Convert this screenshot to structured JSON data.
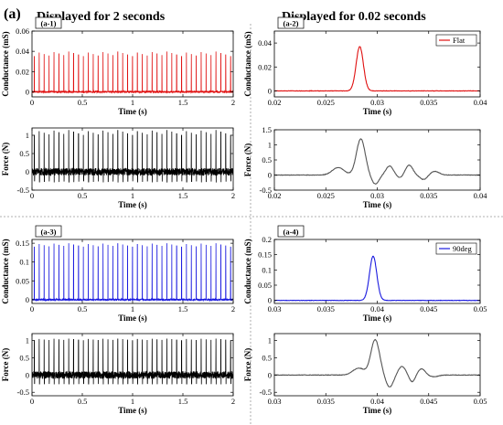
{
  "figure": {
    "label": "(a)",
    "left_heading": "Displayed for 2 seconds",
    "right_heading": "Displayed for 0.02 seconds"
  },
  "colors": {
    "red": "#e01010",
    "blue": "#1a1adf",
    "black": "#000000",
    "gray": "#555555"
  },
  "chart_data": [
    {
      "id": "a1",
      "panel_label": "(a-1)",
      "type": "line",
      "xlabel": "Time (s)",
      "ylabel": "Conductance (mS)",
      "xlim": [
        0,
        2
      ],
      "ylim": [
        -0.005,
        0.06
      ],
      "xticks": [
        0,
        0.5,
        1,
        1.5,
        2
      ],
      "xtick_labels": [
        "0",
        "0.5",
        "1",
        "1.5",
        "2"
      ],
      "yticks": [
        0,
        0.02,
        0.04,
        0.06
      ],
      "ytick_labels": [
        "0",
        "0.02",
        "0.04",
        "0.06"
      ],
      "color": "red",
      "spike_count": 41,
      "spike_heights_range": [
        0.035,
        0.04
      ],
      "baseline": 0,
      "legend": ""
    },
    {
      "id": "a1f",
      "panel_label": "",
      "type": "line",
      "xlabel": "Time (s)",
      "ylabel": "Force (N)",
      "xlim": [
        0,
        2
      ],
      "ylim": [
        -0.5,
        1.2
      ],
      "xticks": [
        0,
        0.5,
        1,
        1.5,
        2
      ],
      "xtick_labels": [
        "0",
        "0.5",
        "1",
        "1.5",
        "2"
      ],
      "yticks": [
        -0.5,
        0,
        0.5,
        1
      ],
      "ytick_labels": [
        "-0.5",
        "0",
        "0.5",
        "1"
      ],
      "color": "black",
      "spike_count": 41,
      "spike_heights_range": [
        1.0,
        1.15
      ],
      "baseline": 0,
      "legend": ""
    },
    {
      "id": "a2",
      "panel_label": "(a-2)",
      "type": "line",
      "xlabel": "Time (s)",
      "ylabel": "Conductance (mS)",
      "xlim": [
        0.02,
        0.04
      ],
      "ylim": [
        -0.005,
        0.05
      ],
      "xticks": [
        0.02,
        0.025,
        0.03,
        0.035,
        0.04
      ],
      "xtick_labels": [
        "0.02",
        "0.025",
        "0.03",
        "0.035",
        "0.04"
      ],
      "yticks": [
        0,
        0.02,
        0.04
      ],
      "ytick_labels": [
        "0",
        "0.02",
        "0.04"
      ],
      "color": "red",
      "peaks": [
        {
          "x": 0.0283,
          "y": 0.037,
          "width": 0.0005
        }
      ],
      "baseline": 0,
      "legend": "Flat"
    },
    {
      "id": "a2f",
      "panel_label": "",
      "type": "line",
      "xlabel": "Time (s)",
      "ylabel": "Force (N)",
      "xlim": [
        0.02,
        0.04
      ],
      "ylim": [
        -0.5,
        1.5
      ],
      "xticks": [
        0.02,
        0.025,
        0.03,
        0.035,
        0.04
      ],
      "xtick_labels": [
        "0.02",
        "0.025",
        "0.03",
        "0.035",
        "0.04"
      ],
      "yticks": [
        -0.5,
        0,
        0.5,
        1,
        1.5
      ],
      "ytick_labels": [
        "-0.5",
        "0",
        "0.5",
        "1",
        "1.5"
      ],
      "color": "gray",
      "peaks": [
        {
          "x": 0.0262,
          "y": 0.25,
          "width": 0.0008
        },
        {
          "x": 0.0284,
          "y": 1.2,
          "width": 0.0006
        },
        {
          "x": 0.0298,
          "y": -0.3,
          "width": 0.0005
        },
        {
          "x": 0.0312,
          "y": 0.3,
          "width": 0.0005
        },
        {
          "x": 0.0322,
          "y": -0.1,
          "width": 0.0004
        },
        {
          "x": 0.0331,
          "y": 0.33,
          "width": 0.0005
        },
        {
          "x": 0.0345,
          "y": -0.15,
          "width": 0.0005
        },
        {
          "x": 0.0356,
          "y": 0.12,
          "width": 0.0006
        }
      ],
      "baseline": 0,
      "legend": ""
    },
    {
      "id": "a3",
      "panel_label": "(a-3)",
      "type": "line",
      "xlabel": "Time (s)",
      "ylabel": "Conductance (mS)",
      "xlim": [
        0,
        2
      ],
      "ylim": [
        -0.01,
        0.16
      ],
      "xticks": [
        0,
        0.5,
        1,
        1.5,
        2
      ],
      "xtick_labels": [
        "0",
        "0.5",
        "1",
        "1.5",
        "2"
      ],
      "yticks": [
        0,
        0.05,
        0.1,
        0.15
      ],
      "ytick_labels": [
        "0",
        "0.05",
        "0.1",
        "0.15"
      ],
      "color": "blue",
      "spike_count": 41,
      "spike_heights_range": [
        0.14,
        0.15
      ],
      "baseline": 0,
      "legend": ""
    },
    {
      "id": "a3f",
      "panel_label": "",
      "type": "line",
      "xlabel": "Time (s)",
      "ylabel": "Force (N)",
      "xlim": [
        0,
        2
      ],
      "ylim": [
        -0.6,
        1.2
      ],
      "xticks": [
        0,
        0.5,
        1,
        1.5,
        2
      ],
      "xtick_labels": [
        "0",
        "0.5",
        "1",
        "1.5",
        "2"
      ],
      "yticks": [
        -0.5,
        0,
        0.5,
        1
      ],
      "ytick_labels": [
        "-0.5",
        "0",
        "0.5",
        "1"
      ],
      "color": "black",
      "spike_count": 41,
      "spike_heights_range": [
        1.0,
        1.05
      ],
      "baseline": 0,
      "legend": ""
    },
    {
      "id": "a4",
      "panel_label": "(a-4)",
      "type": "line",
      "xlabel": "Time (s)",
      "ylabel": "Conductance (mS)",
      "xlim": [
        0.03,
        0.05
      ],
      "ylim": [
        -0.01,
        0.2
      ],
      "xticks": [
        0.03,
        0.035,
        0.04,
        0.045,
        0.05
      ],
      "xtick_labels": [
        "0.03",
        "0.035",
        "0.04",
        "0.045",
        "0.05"
      ],
      "yticks": [
        0,
        0.05,
        0.1,
        0.15,
        0.2
      ],
      "ytick_labels": [
        "0",
        "0.05",
        "0.1",
        "0.15",
        "0.2"
      ],
      "color": "blue",
      "peaks": [
        {
          "x": 0.0396,
          "y": 0.145,
          "width": 0.0005
        }
      ],
      "baseline": 0,
      "legend": "90deg"
    },
    {
      "id": "a4f",
      "panel_label": "",
      "type": "line",
      "xlabel": "Time (s)",
      "ylabel": "Force (N)",
      "xlim": [
        0.03,
        0.05
      ],
      "ylim": [
        -0.6,
        1.2
      ],
      "xticks": [
        0.03,
        0.035,
        0.04,
        0.045,
        0.05
      ],
      "xtick_labels": [
        "0.03",
        "0.035",
        "0.04",
        "0.045",
        "0.05"
      ],
      "yticks": [
        -0.5,
        0,
        0.5,
        1
      ],
      "ytick_labels": [
        "-0.5",
        "0",
        "0.5",
        "1"
      ],
      "color": "gray",
      "peaks": [
        {
          "x": 0.0382,
          "y": 0.2,
          "width": 0.0008
        },
        {
          "x": 0.0398,
          "y": 1.02,
          "width": 0.0006
        },
        {
          "x": 0.0412,
          "y": -0.35,
          "width": 0.0005
        },
        {
          "x": 0.0424,
          "y": 0.25,
          "width": 0.0005
        },
        {
          "x": 0.0434,
          "y": -0.2,
          "width": 0.0004
        },
        {
          "x": 0.0443,
          "y": 0.18,
          "width": 0.0005
        },
        {
          "x": 0.0455,
          "y": -0.05,
          "width": 0.0006
        }
      ],
      "baseline": 0,
      "legend": ""
    }
  ]
}
